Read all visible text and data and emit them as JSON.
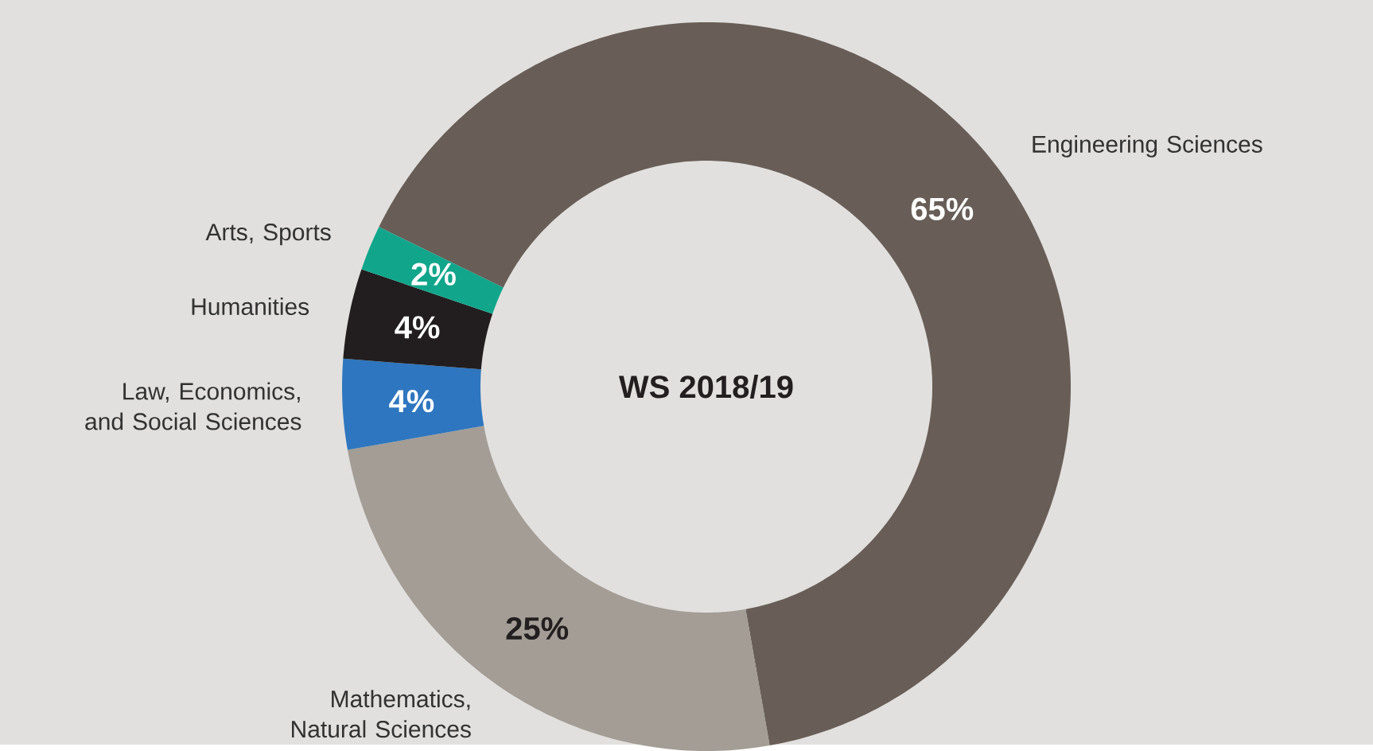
{
  "chart_data": {
    "type": "donut",
    "title": "WS 2018/19",
    "categories": [
      "Engineering Sciences",
      "Mathematics, Natural Sciences",
      "Law, Economics, and Social Sciences",
      "Humanities",
      "Arts, Sports"
    ],
    "values": [
      65,
      25,
      4,
      4,
      2
    ],
    "colors": [
      "#685e57",
      "#a39d96",
      "#2e76bf",
      "#221e1f",
      "#11a68b"
    ],
    "value_labels": [
      "65%",
      "25%",
      "4%",
      "4%",
      "2%"
    ],
    "legend": false
  }
}
